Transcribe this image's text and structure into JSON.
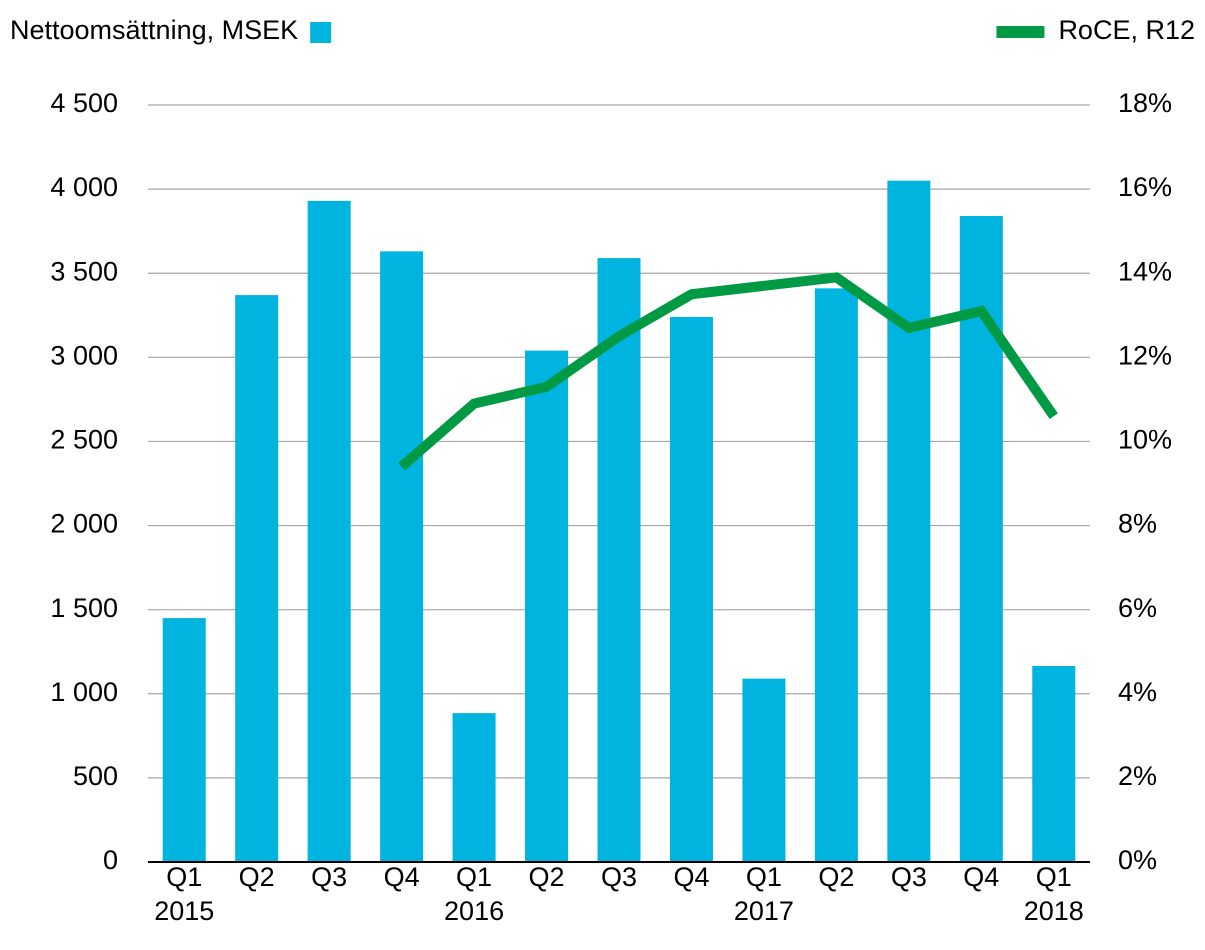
{
  "chart_data": {
    "type": "bar-line",
    "categories": [
      "Q1",
      "Q2",
      "Q3",
      "Q4",
      "Q1",
      "Q2",
      "Q3",
      "Q4",
      "Q1",
      "Q2",
      "Q3",
      "Q4",
      "Q1"
    ],
    "year_labels": [
      "2015",
      null,
      null,
      null,
      "2016",
      null,
      null,
      null,
      "2017",
      null,
      null,
      null,
      "2018"
    ],
    "series": [
      {
        "name": "Nettoomsättning, MSEK",
        "color": "#00b4e0",
        "type": "bar",
        "values": [
          1450,
          3370,
          3930,
          3630,
          885,
          3040,
          3590,
          3240,
          1090,
          3410,
          4050,
          3840,
          1165
        ]
      },
      {
        "name": "RoCE, R12",
        "color": "#009a44",
        "type": "line",
        "axis": "y2",
        "values": [
          null,
          null,
          null,
          9.4,
          10.9,
          11.3,
          12.5,
          13.5,
          13.7,
          13.9,
          12.7,
          13.1,
          10.6
        ]
      }
    ],
    "ylim": [
      0,
      4500
    ],
    "yticks": [
      0,
      500,
      {
        "value": 1000,
        "label": "1 000"
      },
      {
        "value": 1500,
        "label": "1 500"
      },
      {
        "value": 2000,
        "label": "2 000"
      },
      {
        "value": 2500,
        "label": "2 500"
      },
      {
        "value": 3000,
        "label": "3 000"
      },
      {
        "value": 3500,
        "label": "3 500"
      },
      {
        "value": 4000,
        "label": "4 000"
      },
      {
        "value": 4500,
        "label": "4 500"
      }
    ],
    "y2lim": [
      0,
      18
    ],
    "y2ticks": [
      {
        "value": 0,
        "label": "0%"
      },
      {
        "value": 2,
        "label": "2%"
      },
      {
        "value": 4,
        "label": "4%"
      },
      {
        "value": 6,
        "label": "6%"
      },
      {
        "value": 8,
        "label": "8%"
      },
      {
        "value": 10,
        "label": "10%"
      },
      {
        "value": 12,
        "label": "12%"
      },
      {
        "value": 14,
        "label": "14%"
      },
      {
        "value": 16,
        "label": "16%"
      },
      {
        "value": 18,
        "label": "18%"
      }
    ],
    "grid": true
  }
}
